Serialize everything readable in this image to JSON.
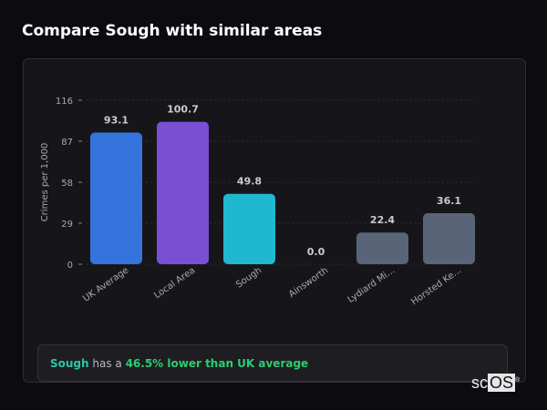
{
  "title": "Compare Sough with similar areas",
  "chart_data": {
    "type": "bar",
    "ylabel": "Crimes per 1,000",
    "xlabel": "",
    "ylim": [
      0,
      116
    ],
    "yticks": [
      0,
      29,
      58,
      87,
      116
    ],
    "grid": true,
    "categories": [
      "UK Average",
      "Local Area",
      "Sough",
      "Ainsworth",
      "Lydiard Mi...",
      "Horsted Ke..."
    ],
    "values": [
      93.1,
      100.7,
      49.8,
      0.0,
      22.4,
      36.1
    ],
    "value_labels": [
      "93.1",
      "100.7",
      "49.8",
      "0.0",
      "22.4",
      "36.1"
    ],
    "colors": [
      "#3574dc",
      "#7b4fd4",
      "#20b8d0",
      "#5a6478",
      "#5a6478",
      "#5a6478"
    ]
  },
  "summary": {
    "area": "Sough",
    "middle": " has a ",
    "comparison": "46.5% lower than UK average"
  },
  "logo": {
    "text_a": "sc",
    "text_b": "OS",
    "mark": "®"
  }
}
